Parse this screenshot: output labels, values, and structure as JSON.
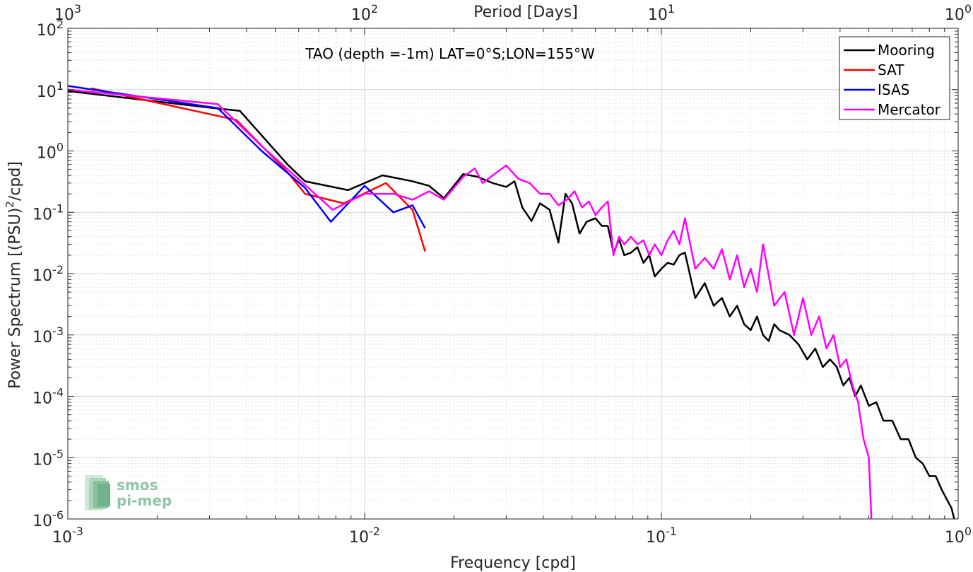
{
  "chart_data": {
    "type": "line",
    "title": "TAO (depth =-1m) LAT=0°S;LON=155°W",
    "xlabel": "Frequency [cpd]",
    "ylabel": "Power Spectrum [(PSU)2/cpd]",
    "ylabel_parts": {
      "base": "Power Spectrum [(PSU)",
      "sup": "2",
      "tail": "/cpd]"
    },
    "top_xlabel": "Period [Days]",
    "x_scale": "log",
    "y_scale": "log",
    "xlim": [
      0.001,
      1
    ],
    "ylim": [
      1e-06,
      100
    ],
    "grid": true,
    "legend_position": "top-right",
    "x_ticks": [
      {
        "value": 0.001,
        "base": "10",
        "exp": "-3"
      },
      {
        "value": 0.01,
        "base": "10",
        "exp": "-2"
      },
      {
        "value": 0.1,
        "base": "10",
        "exp": "-1"
      },
      {
        "value": 1,
        "base": "10",
        "exp": "0"
      }
    ],
    "top_ticks": [
      {
        "value": 0.001,
        "base": "10",
        "exp": "3"
      },
      {
        "value": 0.01,
        "base": "10",
        "exp": "2"
      },
      {
        "value": 0.1,
        "base": "10",
        "exp": "1"
      },
      {
        "value": 1,
        "base": "10",
        "exp": "0"
      }
    ],
    "y_ticks": [
      {
        "value": 100,
        "base": "10",
        "exp": "2"
      },
      {
        "value": 10,
        "base": "10",
        "exp": "1"
      },
      {
        "value": 1,
        "base": "10",
        "exp": "0"
      },
      {
        "value": 0.1,
        "base": "10",
        "exp": "-1"
      },
      {
        "value": 0.01,
        "base": "10",
        "exp": "-2"
      },
      {
        "value": 0.001,
        "base": "10",
        "exp": "-3"
      },
      {
        "value": 0.0001,
        "base": "10",
        "exp": "-4"
      },
      {
        "value": 1e-05,
        "base": "10",
        "exp": "-5"
      },
      {
        "value": 1e-06,
        "base": "10",
        "exp": "-6"
      }
    ],
    "series": [
      {
        "name": "Mooring",
        "color": "#000000",
        "x": [
          0.001,
          0.0031,
          0.0038,
          0.0055,
          0.0063,
          0.0088,
          0.0115,
          0.0145,
          0.0165,
          0.0185,
          0.0215,
          0.024,
          0.027,
          0.03,
          0.032,
          0.034,
          0.0365,
          0.039,
          0.042,
          0.045,
          0.0475,
          0.05,
          0.053,
          0.056,
          0.06,
          0.063,
          0.066,
          0.069,
          0.072,
          0.075,
          0.079,
          0.083,
          0.087,
          0.091,
          0.095,
          0.1,
          0.105,
          0.11,
          0.115,
          0.12,
          0.13,
          0.14,
          0.15,
          0.16,
          0.17,
          0.18,
          0.19,
          0.2,
          0.21,
          0.22,
          0.23,
          0.24,
          0.25,
          0.27,
          0.29,
          0.31,
          0.33,
          0.35,
          0.37,
          0.39,
          0.41,
          0.43,
          0.45,
          0.47,
          0.5,
          0.53,
          0.56,
          0.6,
          0.64,
          0.68,
          0.72,
          0.76,
          0.8,
          0.84,
          0.88,
          0.92,
          0.95,
          0.97
        ],
        "y": [
          9.5,
          5.0,
          4.5,
          0.6,
          0.32,
          0.23,
          0.4,
          0.32,
          0.27,
          0.17,
          0.42,
          0.38,
          0.3,
          0.26,
          0.32,
          0.12,
          0.072,
          0.14,
          0.11,
          0.032,
          0.2,
          0.14,
          0.045,
          0.07,
          0.08,
          0.06,
          0.06,
          0.022,
          0.036,
          0.02,
          0.022,
          0.027,
          0.015,
          0.02,
          0.009,
          0.012,
          0.015,
          0.014,
          0.02,
          0.022,
          0.004,
          0.007,
          0.003,
          0.004,
          0.002,
          0.003,
          0.0015,
          0.0012,
          0.002,
          0.001,
          0.0008,
          0.0015,
          0.0012,
          0.001,
          0.0007,
          0.0004,
          0.0006,
          0.0003,
          0.0004,
          0.0003,
          0.00015,
          0.0002,
          0.0001,
          0.00015,
          7e-05,
          8e-05,
          4e-05,
          4e-05,
          2e-05,
          2e-05,
          1e-05,
          8e-06,
          5e-06,
          5e-06,
          3e-06,
          2e-06,
          1.5e-06,
          1e-06
        ]
      },
      {
        "name": "SAT",
        "color": "#ff0000",
        "x": [
          0.0012,
          0.0037,
          0.0055,
          0.0063,
          0.0085,
          0.0118,
          0.0145,
          0.016
        ],
        "y": [
          10.5,
          3.2,
          0.45,
          0.2,
          0.14,
          0.3,
          0.11,
          0.023
        ]
      },
      {
        "name": "ISAS",
        "color": "#0000ff",
        "x": [
          0.001,
          0.0032,
          0.0045,
          0.0063,
          0.0077,
          0.01,
          0.0125,
          0.0145,
          0.016
        ],
        "y": [
          11.5,
          5.0,
          1.0,
          0.25,
          0.07,
          0.27,
          0.1,
          0.13,
          0.055
        ]
      },
      {
        "name": "Mercator",
        "color": "#ff00ff",
        "x": [
          0.001,
          0.0032,
          0.0045,
          0.0063,
          0.0078,
          0.01,
          0.0125,
          0.0145,
          0.0165,
          0.0185,
          0.0215,
          0.0235,
          0.025,
          0.027,
          0.03,
          0.033,
          0.036,
          0.039,
          0.042,
          0.045,
          0.048,
          0.051,
          0.054,
          0.057,
          0.06,
          0.063,
          0.066,
          0.069,
          0.072,
          0.075,
          0.079,
          0.083,
          0.087,
          0.091,
          0.095,
          0.1,
          0.105,
          0.11,
          0.115,
          0.12,
          0.13,
          0.14,
          0.15,
          0.16,
          0.17,
          0.18,
          0.19,
          0.2,
          0.21,
          0.22,
          0.24,
          0.26,
          0.28,
          0.3,
          0.32,
          0.34,
          0.36,
          0.38,
          0.4,
          0.42,
          0.44,
          0.46,
          0.48,
          0.5,
          0.51
        ],
        "y": [
          10.0,
          5.8,
          1.2,
          0.28,
          0.11,
          0.2,
          0.2,
          0.16,
          0.22,
          0.16,
          0.38,
          0.52,
          0.3,
          0.4,
          0.58,
          0.35,
          0.3,
          0.2,
          0.2,
          0.13,
          0.16,
          0.22,
          0.12,
          0.15,
          0.09,
          0.12,
          0.15,
          0.02,
          0.04,
          0.03,
          0.04,
          0.03,
          0.035,
          0.02,
          0.03,
          0.02,
          0.035,
          0.05,
          0.03,
          0.08,
          0.012,
          0.018,
          0.012,
          0.025,
          0.008,
          0.02,
          0.006,
          0.012,
          0.005,
          0.03,
          0.003,
          0.005,
          0.001,
          0.004,
          0.001,
          0.002,
          0.0006,
          0.001,
          0.0003,
          0.0004,
          0.00015,
          8e-05,
          2e-05,
          1e-05,
          1e-06
        ]
      }
    ]
  },
  "logo": {
    "line1": "smos",
    "line2": "pi-mep"
  }
}
